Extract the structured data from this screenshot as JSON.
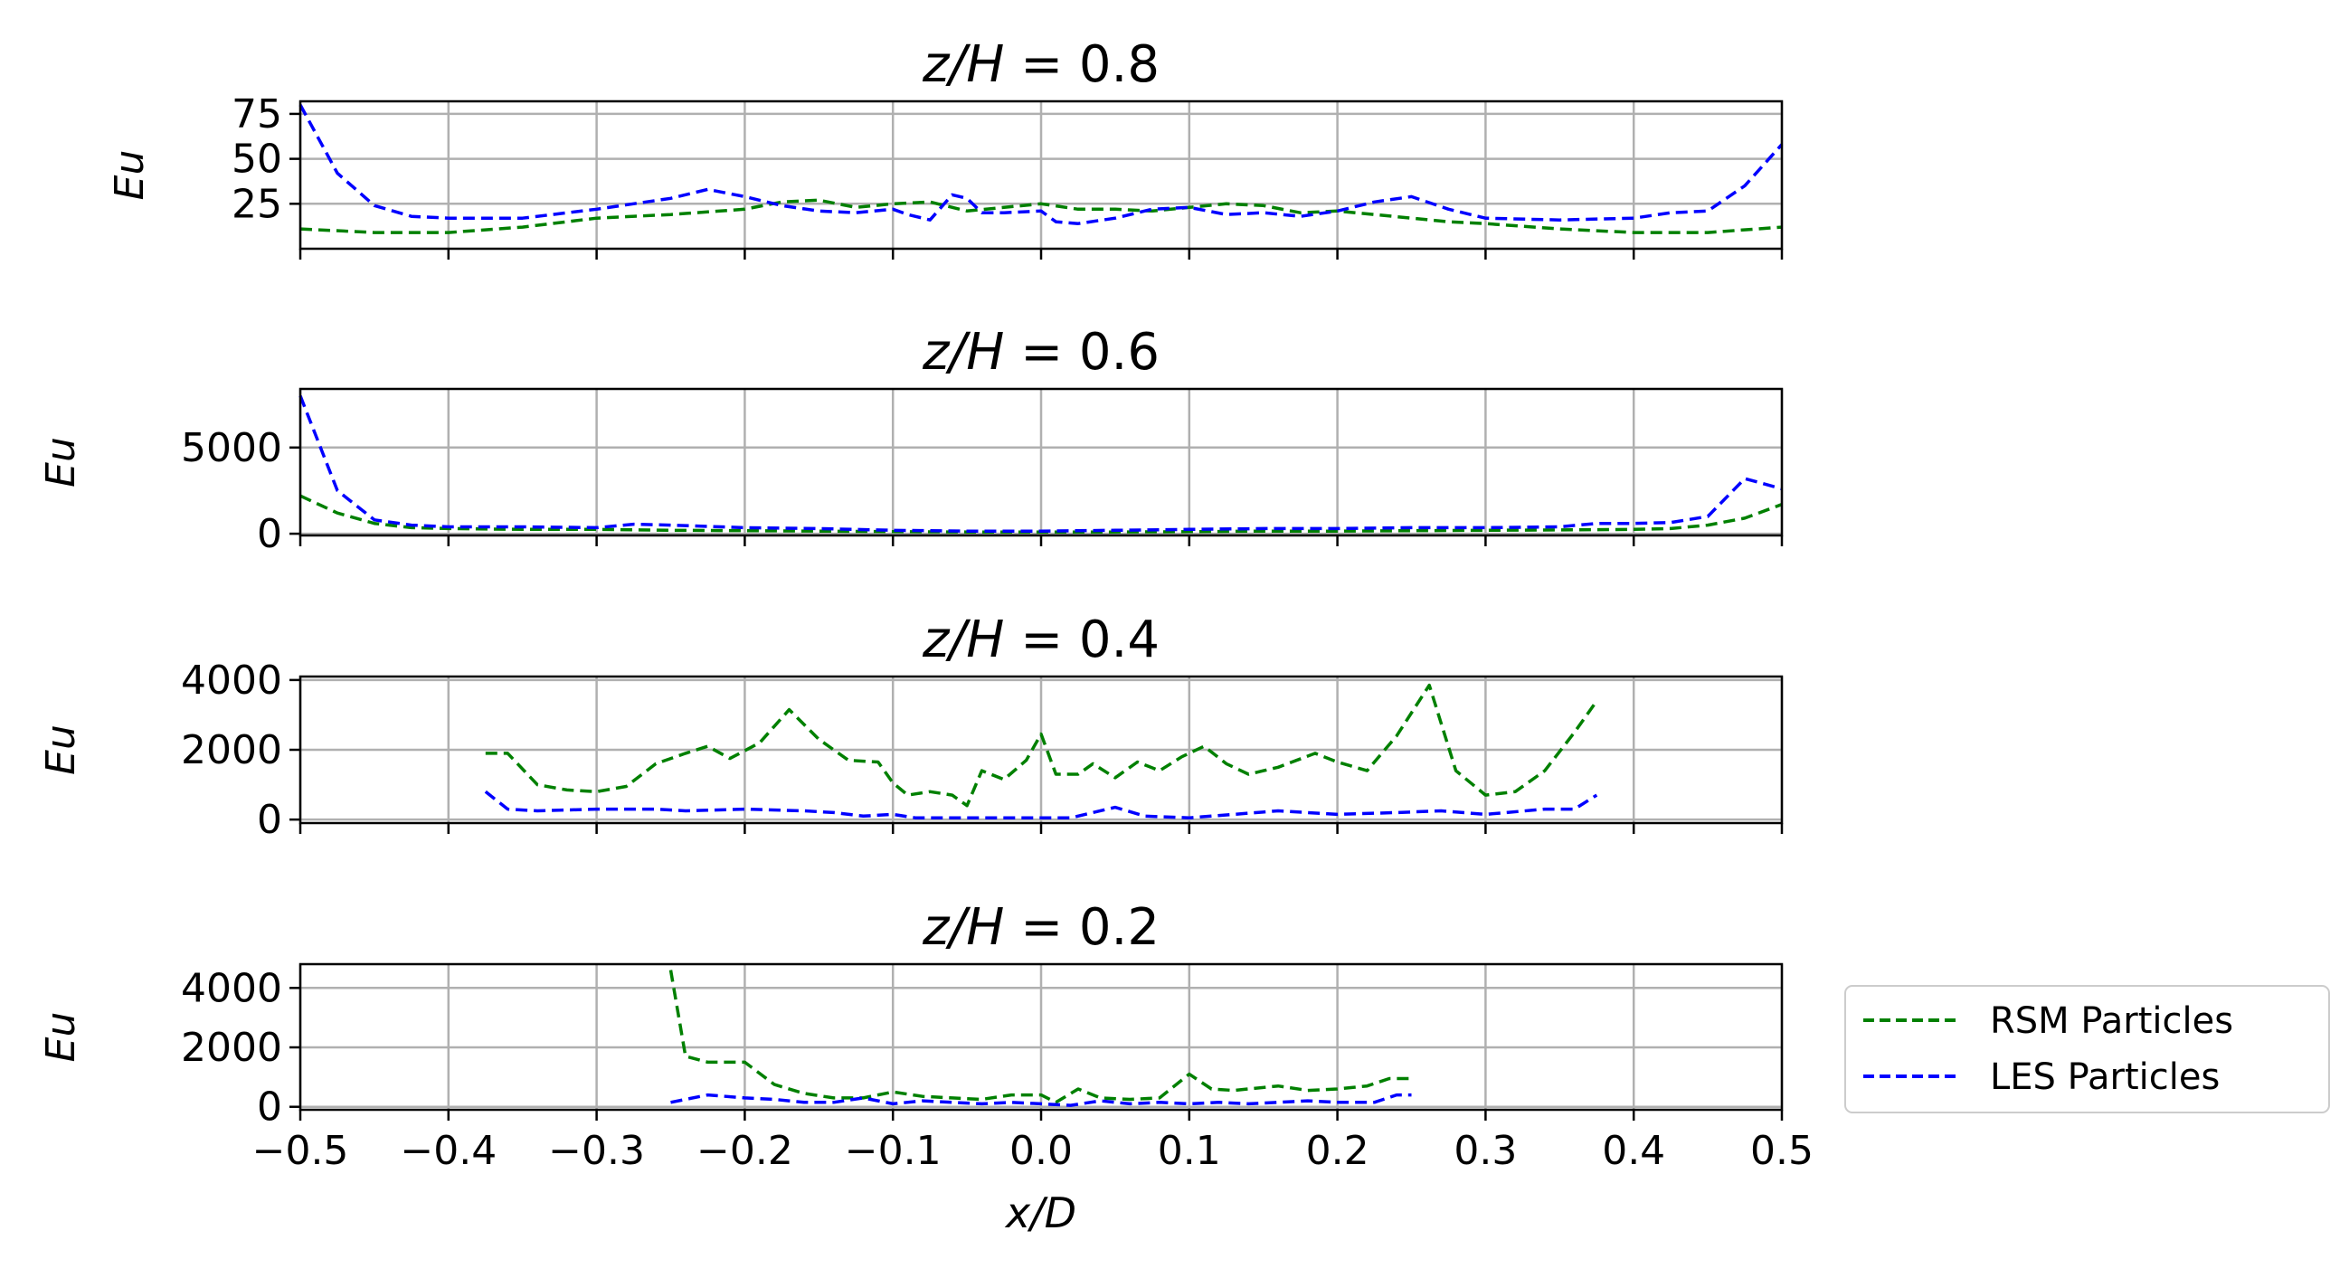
{
  "chart_data": [
    {
      "type": "line",
      "title": "z/H = 0.8",
      "ylabel": "Eu",
      "xlabel": "",
      "xlim": [
        -0.5,
        0.5
      ],
      "ylim": [
        0,
        82
      ],
      "xticks": [
        -0.5,
        -0.4,
        -0.3,
        -0.2,
        -0.1,
        0.0,
        0.1,
        0.2,
        0.3,
        0.4,
        0.5
      ],
      "yticks": [
        25,
        50,
        75
      ],
      "ytick_labels": [
        "25",
        "50",
        "75"
      ],
      "grid": true,
      "series": [
        {
          "name": "RSM Particles",
          "color": "#008000",
          "x": [
            -0.5,
            -0.45,
            -0.4,
            -0.35,
            -0.3,
            -0.25,
            -0.2,
            -0.175,
            -0.15,
            -0.125,
            -0.1,
            -0.075,
            -0.05,
            -0.025,
            0.0,
            0.025,
            0.05,
            0.075,
            0.1,
            0.125,
            0.15,
            0.175,
            0.2,
            0.225,
            0.25,
            0.275,
            0.3,
            0.35,
            0.4,
            0.45,
            0.5
          ],
          "y": [
            11,
            9,
            9,
            12,
            17,
            19,
            22,
            26,
            27,
            23,
            25,
            26,
            21,
            23,
            25,
            22,
            22,
            21,
            23,
            25,
            24,
            20,
            21,
            19,
            17,
            15,
            14,
            11,
            9,
            9,
            12
          ]
        },
        {
          "name": "LES Particles",
          "color": "#0000ff",
          "x": [
            -0.5,
            -0.475,
            -0.45,
            -0.425,
            -0.4,
            -0.375,
            -0.35,
            -0.3,
            -0.25,
            -0.225,
            -0.2,
            -0.175,
            -0.15,
            -0.125,
            -0.1,
            -0.09,
            -0.075,
            -0.06,
            -0.05,
            -0.04,
            -0.025,
            0.0,
            0.01,
            0.025,
            0.05,
            0.075,
            0.1,
            0.125,
            0.15,
            0.175,
            0.2,
            0.225,
            0.25,
            0.275,
            0.3,
            0.35,
            0.4,
            0.425,
            0.45,
            0.475,
            0.5
          ],
          "y": [
            80,
            42,
            24,
            18,
            17,
            17,
            17,
            22,
            28,
            33,
            29,
            24,
            21,
            20,
            22,
            19,
            16,
            30,
            28,
            20,
            20,
            21,
            15,
            14,
            17,
            22,
            23,
            19,
            20,
            18,
            21,
            26,
            29,
            22,
            17,
            16,
            17,
            20,
            21,
            35,
            58
          ]
        }
      ]
    },
    {
      "type": "line",
      "title": "z/H = 0.6",
      "ylabel": "Eu",
      "xlabel": "",
      "xlim": [
        -0.5,
        0.5
      ],
      "ylim": [
        -100,
        8400
      ],
      "xticks": [
        -0.5,
        -0.4,
        -0.3,
        -0.2,
        -0.1,
        0.0,
        0.1,
        0.2,
        0.3,
        0.4,
        0.5
      ],
      "yticks": [
        0,
        5000
      ],
      "ytick_labels": [
        "0",
        "5000"
      ],
      "grid": true,
      "series": [
        {
          "name": "RSM Particles",
          "color": "#008000",
          "x": [
            -0.5,
            -0.475,
            -0.45,
            -0.425,
            -0.4,
            -0.35,
            -0.3,
            -0.25,
            -0.2,
            -0.15,
            -0.1,
            -0.05,
            0.0,
            0.05,
            0.1,
            0.15,
            0.2,
            0.25,
            0.3,
            0.35,
            0.4,
            0.425,
            0.45,
            0.475,
            0.5
          ],
          "y": [
            2200,
            1200,
            600,
            350,
            300,
            250,
            250,
            200,
            180,
            150,
            120,
            100,
            100,
            100,
            120,
            150,
            150,
            180,
            200,
            220,
            250,
            300,
            500,
            900,
            1700
          ]
        },
        {
          "name": "LES Particles",
          "color": "#0000ff",
          "x": [
            -0.5,
            -0.475,
            -0.45,
            -0.425,
            -0.4,
            -0.35,
            -0.3,
            -0.275,
            -0.25,
            -0.2,
            -0.15,
            -0.1,
            -0.05,
            0.0,
            0.05,
            0.1,
            0.15,
            0.2,
            0.25,
            0.3,
            0.35,
            0.375,
            0.4,
            0.425,
            0.45,
            0.475,
            0.5
          ],
          "y": [
            8000,
            2500,
            800,
            500,
            400,
            400,
            350,
            550,
            500,
            350,
            300,
            200,
            150,
            150,
            200,
            250,
            300,
            300,
            350,
            350,
            400,
            600,
            600,
            650,
            1000,
            3200,
            2600
          ]
        }
      ]
    },
    {
      "type": "line",
      "title": "z/H = 0.4",
      "ylabel": "Eu",
      "xlabel": "",
      "xlim": [
        -0.5,
        0.5
      ],
      "ylim": [
        -100,
        4100
      ],
      "xticks": [
        -0.5,
        -0.4,
        -0.3,
        -0.2,
        -0.1,
        0.0,
        0.1,
        0.2,
        0.3,
        0.4,
        0.5
      ],
      "yticks": [
        0,
        2000,
        4000
      ],
      "ytick_labels": [
        "0",
        "2000",
        "4000"
      ],
      "grid": true,
      "series": [
        {
          "name": "RSM Particles",
          "color": "#008000",
          "x": [
            -0.375,
            -0.36,
            -0.34,
            -0.32,
            -0.3,
            -0.28,
            -0.26,
            -0.24,
            -0.225,
            -0.21,
            -0.19,
            -0.17,
            -0.15,
            -0.13,
            -0.11,
            -0.1,
            -0.09,
            -0.075,
            -0.06,
            -0.05,
            -0.04,
            -0.025,
            -0.01,
            0.0,
            0.01,
            0.025,
            0.035,
            0.05,
            0.065,
            0.08,
            0.095,
            0.11,
            0.125,
            0.14,
            0.16,
            0.185,
            0.2,
            0.22,
            0.24,
            0.262,
            0.28,
            0.3,
            0.32,
            0.34,
            0.36,
            0.375
          ],
          "y": [
            1900,
            1900,
            1000,
            850,
            800,
            950,
            1600,
            1900,
            2100,
            1750,
            2200,
            3150,
            2300,
            1700,
            1650,
            1050,
            700,
            800,
            700,
            400,
            1400,
            1150,
            1700,
            2450,
            1300,
            1300,
            1600,
            1200,
            1650,
            1400,
            1800,
            2100,
            1600,
            1300,
            1500,
            1900,
            1650,
            1400,
            2400,
            3850,
            1400,
            700,
            800,
            1400,
            2500,
            3400
          ]
        },
        {
          "name": "LES Particles",
          "color": "#0000ff",
          "x": [
            -0.375,
            -0.36,
            -0.34,
            -0.3,
            -0.26,
            -0.24,
            -0.2,
            -0.16,
            -0.14,
            -0.12,
            -0.1,
            -0.085,
            -0.06,
            -0.04,
            -0.02,
            0.0,
            0.02,
            0.05,
            0.07,
            0.1,
            0.13,
            0.16,
            0.2,
            0.24,
            0.27,
            0.3,
            0.34,
            0.36,
            0.375
          ],
          "y": [
            800,
            300,
            250,
            300,
            300,
            250,
            300,
            250,
            200,
            100,
            150,
            50,
            50,
            50,
            50,
            50,
            50,
            350,
            100,
            50,
            150,
            250,
            150,
            200,
            250,
            150,
            300,
            300,
            700
          ]
        }
      ]
    },
    {
      "type": "line",
      "title": "z/H = 0.2",
      "ylabel": "Eu",
      "xlabel": "x/D",
      "xlim": [
        -0.5,
        0.5
      ],
      "ylim": [
        -100,
        4800
      ],
      "xticks": [
        -0.5,
        -0.4,
        -0.3,
        -0.2,
        -0.1,
        0.0,
        0.1,
        0.2,
        0.3,
        0.4,
        0.5
      ],
      "xtick_labels": [
        "−0.5",
        "−0.4",
        "−0.3",
        "−0.2",
        "−0.1",
        "0.0",
        "0.1",
        "0.2",
        "0.3",
        "0.4",
        "0.5"
      ],
      "yticks": [
        0,
        2000,
        4000
      ],
      "ytick_labels": [
        "0",
        "2000",
        "4000"
      ],
      "grid": true,
      "legend_position": "lower-right-outside",
      "series": [
        {
          "name": "RSM Particles",
          "color": "#008000",
          "x": [
            -0.25,
            -0.24,
            -0.225,
            -0.2,
            -0.18,
            -0.16,
            -0.14,
            -0.12,
            -0.1,
            -0.08,
            -0.06,
            -0.04,
            -0.02,
            0.0,
            0.01,
            0.025,
            0.04,
            0.06,
            0.08,
            0.1,
            0.115,
            0.13,
            0.16,
            0.18,
            0.2,
            0.22,
            0.235,
            0.25
          ],
          "y": [
            4600,
            1700,
            1500,
            1500,
            750,
            450,
            300,
            300,
            500,
            350,
            300,
            250,
            400,
            400,
            150,
            600,
            300,
            250,
            300,
            1100,
            600,
            550,
            700,
            550,
            600,
            700,
            950,
            950
          ]
        },
        {
          "name": "LES Particles",
          "color": "#0000ff",
          "x": [
            -0.25,
            -0.225,
            -0.2,
            -0.18,
            -0.16,
            -0.14,
            -0.12,
            -0.1,
            -0.08,
            -0.06,
            -0.04,
            -0.02,
            0.0,
            0.02,
            0.04,
            0.06,
            0.08,
            0.1,
            0.12,
            0.14,
            0.16,
            0.18,
            0.2,
            0.225,
            0.24,
            0.25
          ],
          "y": [
            150,
            400,
            300,
            250,
            150,
            150,
            300,
            100,
            200,
            150,
            100,
            150,
            100,
            50,
            200,
            100,
            150,
            100,
            150,
            100,
            150,
            200,
            150,
            150,
            400,
            400
          ]
        }
      ]
    }
  ]
}
